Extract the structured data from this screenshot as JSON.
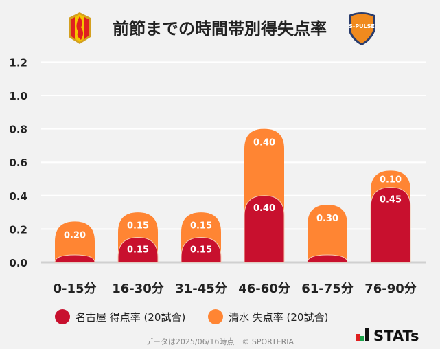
{
  "chart_data": {
    "type": "bar",
    "stacked": true,
    "title": "前節までの時間帯別得失点率",
    "categories": [
      "0-15分",
      "16-30分",
      "31-45分",
      "46-60分",
      "61-75分",
      "76-90分"
    ],
    "series": [
      {
        "name": "名古屋 得点率 (20試合)",
        "color": "#c8102e",
        "values": [
          0.0,
          0.15,
          0.15,
          0.4,
          0.0,
          0.45
        ],
        "labels": [
          "",
          "0.15",
          "0.15",
          "0.40",
          "",
          "0.45"
        ]
      },
      {
        "name": "清水 失点率 (20試合)",
        "color": "#ff8533",
        "values": [
          0.2,
          0.15,
          0.15,
          0.4,
          0.3,
          0.1
        ],
        "labels": [
          "0.20",
          "0.15",
          "0.15",
          "0.40",
          "0.30",
          "0.10"
        ]
      }
    ],
    "yticks": [
      "0.0",
      "0.2",
      "0.4",
      "0.6",
      "0.8",
      "1.0",
      "1.2"
    ],
    "ylim": [
      0,
      1.2
    ],
    "grid": true,
    "legend_position": "bottom"
  },
  "footer": {
    "note": "データは2025/06/16時点　© SPORTERIA",
    "brand": "STATs"
  },
  "logos": {
    "home": "名古屋",
    "away": "S-PULSE"
  }
}
